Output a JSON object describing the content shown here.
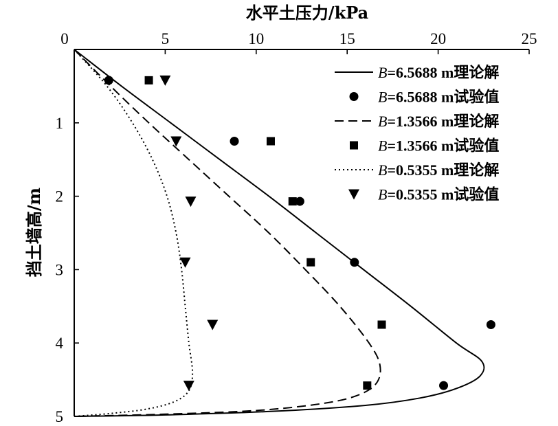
{
  "chart_data": {
    "type": "line",
    "xlabel": "水平土压力/kPa",
    "ylabel": "挡土墙高/m",
    "x_axis_position": "top",
    "y_axis_inverted": true,
    "xlim": [
      0,
      25
    ],
    "ylim": [
      0,
      5
    ],
    "x_ticks": [
      "0",
      "5",
      "10",
      "15",
      "20",
      "25"
    ],
    "y_ticks": [
      "1",
      "2",
      "3",
      "4",
      "5"
    ],
    "grid": false,
    "legend_position": "top-right",
    "series": [
      {
        "kind": "line",
        "style": "solid",
        "legend": {
          "var": "B",
          "value": "=6.5688",
          "unit": " m",
          "desc": "理论解"
        },
        "points": [
          [
            0,
            0
          ],
          [
            2.6,
            0.5
          ],
          [
            5.3,
            1.0
          ],
          [
            8.0,
            1.5
          ],
          [
            10.7,
            2.0
          ],
          [
            13.3,
            2.5
          ],
          [
            15.9,
            3.0
          ],
          [
            18.5,
            3.5
          ],
          [
            21.0,
            4.0
          ],
          [
            22.4,
            4.25
          ],
          [
            22.3,
            4.45
          ],
          [
            21.0,
            4.62
          ],
          [
            19.0,
            4.75
          ],
          [
            16.0,
            4.85
          ],
          [
            11.0,
            4.93
          ],
          [
            5.0,
            4.98
          ],
          [
            0,
            5.0
          ]
        ]
      },
      {
        "kind": "scatter",
        "marker": "circle",
        "legend": {
          "var": "B",
          "value": "=6.5688",
          "unit": " m",
          "desc": "试验值"
        },
        "points": [
          [
            1.9,
            0.42
          ],
          [
            8.8,
            1.25
          ],
          [
            12.4,
            2.07
          ],
          [
            15.4,
            2.9
          ],
          [
            22.9,
            3.75
          ],
          [
            20.3,
            4.58
          ]
        ]
      },
      {
        "kind": "line",
        "style": "dashed",
        "legend": {
          "var": "B",
          "value": "=1.3566",
          "unit": " m",
          "desc": "理论解"
        },
        "points": [
          [
            0,
            0
          ],
          [
            2.0,
            0.5
          ],
          [
            4.1,
            1.0
          ],
          [
            6.3,
            1.5
          ],
          [
            8.5,
            2.0
          ],
          [
            10.7,
            2.5
          ],
          [
            12.7,
            3.0
          ],
          [
            14.6,
            3.5
          ],
          [
            16.2,
            4.0
          ],
          [
            16.8,
            4.3
          ],
          [
            16.6,
            4.55
          ],
          [
            15.5,
            4.72
          ],
          [
            13.5,
            4.83
          ],
          [
            10.0,
            4.92
          ],
          [
            5.0,
            4.97
          ],
          [
            0,
            5.0
          ]
        ]
      },
      {
        "kind": "scatter",
        "marker": "square",
        "legend": {
          "var": "B",
          "value": "=1.3566",
          "unit": " m",
          "desc": "试验值"
        },
        "points": [
          [
            4.1,
            0.42
          ],
          [
            10.8,
            1.25
          ],
          [
            12.0,
            2.07
          ],
          [
            13.0,
            2.9
          ],
          [
            16.9,
            3.75
          ],
          [
            16.1,
            4.58
          ]
        ]
      },
      {
        "kind": "line",
        "style": "dotted",
        "legend": {
          "var": "B",
          "value": "=0.5355",
          "unit": " m",
          "desc": "理论解"
        },
        "points": [
          [
            0,
            0
          ],
          [
            1.8,
            0.5
          ],
          [
            3.2,
            1.0
          ],
          [
            4.3,
            1.5
          ],
          [
            5.1,
            2.0
          ],
          [
            5.6,
            2.5
          ],
          [
            5.9,
            3.0
          ],
          [
            6.1,
            3.5
          ],
          [
            6.3,
            4.0
          ],
          [
            6.5,
            4.4
          ],
          [
            6.3,
            4.65
          ],
          [
            5.5,
            4.8
          ],
          [
            4.0,
            4.9
          ],
          [
            2.0,
            4.96
          ],
          [
            0,
            5.0
          ]
        ]
      },
      {
        "kind": "scatter",
        "marker": "triangle-down",
        "legend": {
          "var": "B",
          "value": "=0.5355",
          "unit": " m",
          "desc": "试验值"
        },
        "points": [
          [
            5.0,
            0.42
          ],
          [
            5.6,
            1.25
          ],
          [
            6.4,
            2.07
          ],
          [
            6.1,
            2.9
          ],
          [
            7.6,
            3.75
          ],
          [
            6.3,
            4.58
          ]
        ]
      }
    ]
  }
}
